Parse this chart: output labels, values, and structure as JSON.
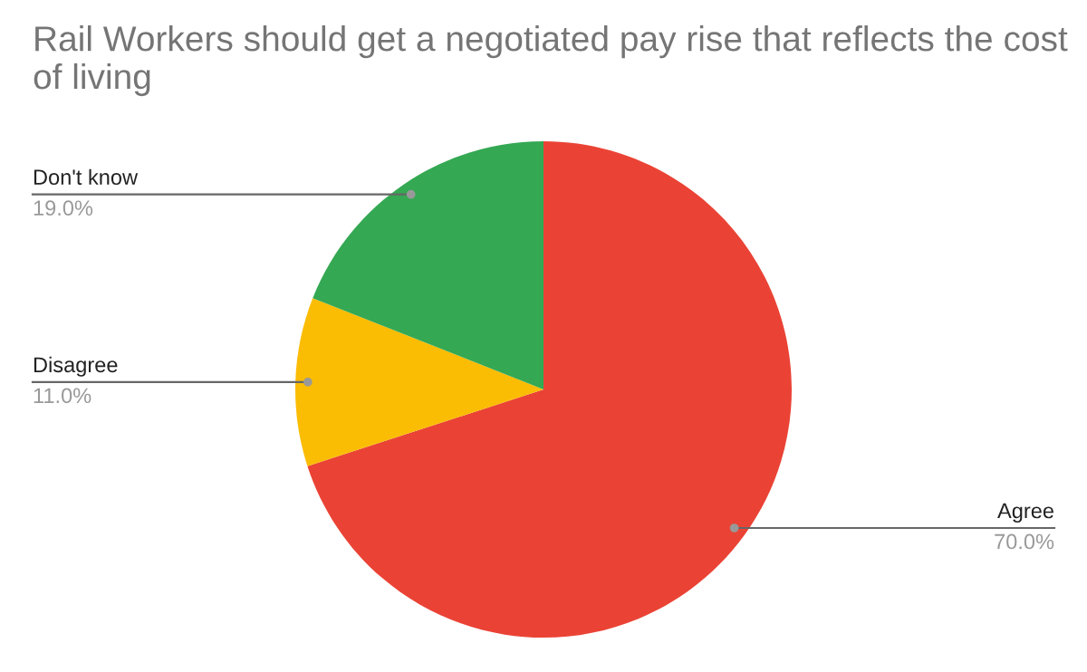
{
  "chart_data": {
    "type": "pie",
    "title": "Rail Workers should get a negotiated pay rise that reflects the cost of living",
    "categories": [
      "Agree",
      "Disagree",
      "Don't know"
    ],
    "values": [
      70,
      11,
      19
    ],
    "value_labels": [
      "70.0%",
      "11.0%",
      "19.0%"
    ],
    "colors": [
      "#ea4335",
      "#fbbc04",
      "#34a853"
    ],
    "legend": false
  }
}
